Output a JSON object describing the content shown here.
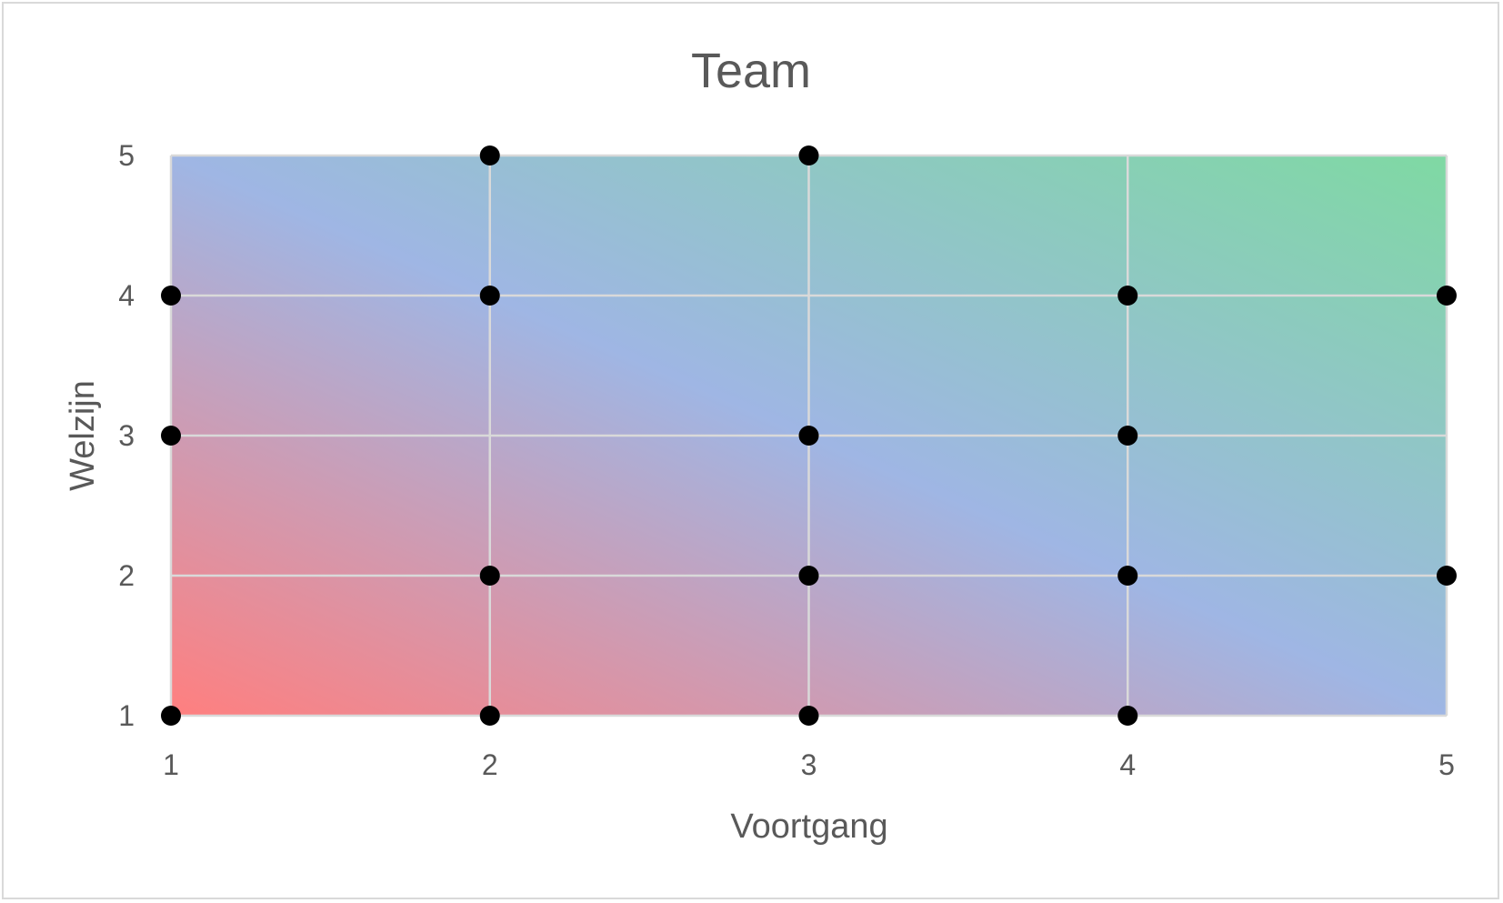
{
  "chart_data": {
    "type": "scatter",
    "title": "Team",
    "xlabel": "Voortgang",
    "ylabel": "Welzijn",
    "xlim": [
      1,
      5
    ],
    "ylim": [
      1,
      5
    ],
    "xticks": [
      "1",
      "2",
      "3",
      "4",
      "5"
    ],
    "yticks": [
      "1",
      "2",
      "3",
      "4",
      "5"
    ],
    "grid": true,
    "legend": "none",
    "background_gradient": {
      "from_corner": "bottom-left",
      "to_corner": "top-right",
      "colors": [
        "#ff7f7f",
        "#9fb6e4",
        "#7fd9a3"
      ]
    },
    "point_color": "#000000",
    "points": [
      {
        "x": 1,
        "y": 1
      },
      {
        "x": 1,
        "y": 3
      },
      {
        "x": 1,
        "y": 4
      },
      {
        "x": 2,
        "y": 1
      },
      {
        "x": 2,
        "y": 2
      },
      {
        "x": 2,
        "y": 4
      },
      {
        "x": 2,
        "y": 5
      },
      {
        "x": 3,
        "y": 1
      },
      {
        "x": 3,
        "y": 2
      },
      {
        "x": 3,
        "y": 3
      },
      {
        "x": 3,
        "y": 5
      },
      {
        "x": 4,
        "y": 1
      },
      {
        "x": 4,
        "y": 2
      },
      {
        "x": 4,
        "y": 3
      },
      {
        "x": 4,
        "y": 4
      },
      {
        "x": 5,
        "y": 2
      },
      {
        "x": 5,
        "y": 4
      }
    ]
  }
}
